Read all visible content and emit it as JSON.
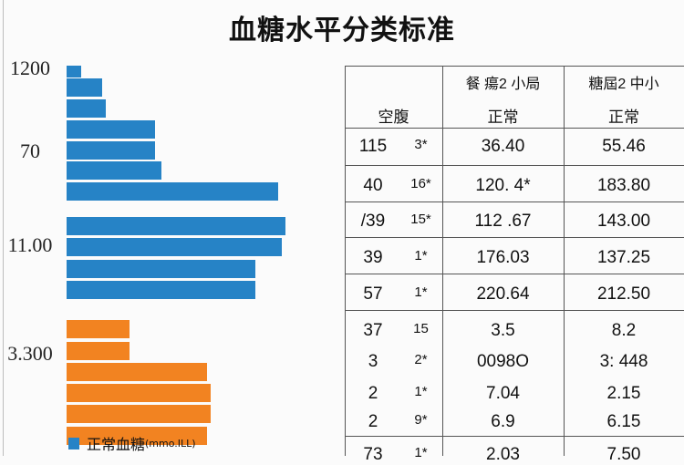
{
  "title": "血糖水平分类标准",
  "chart_data": {
    "type": "bar",
    "orientation": "horizontal",
    "y_tick_labels": [
      "1200",
      "70",
      "11.00",
      "3.300"
    ],
    "series": [
      {
        "color": "#2683c6",
        "values": [
          0.08,
          0.2,
          0.22,
          0.49,
          0.49,
          0.53,
          1.18,
          1.22,
          1.2,
          1.05,
          1.05
        ]
      },
      {
        "color": "#f28321",
        "values": [
          0.35,
          0.35,
          0.78,
          0.8,
          0.8,
          0.78
        ]
      }
    ],
    "legend": [
      {
        "label": "正常血糖",
        "unit": "(mmo.ILL)",
        "color": "#2683c6"
      }
    ]
  },
  "table": {
    "headers": [
      {
        "top": "",
        "sub": "空腹"
      },
      {
        "top": "餐 瘍2 小局",
        "sub": "正常"
      },
      {
        "top": "糖屆2 中小",
        "sub": "正常"
      }
    ],
    "rows": [
      {
        "c1": "115",
        "c2": "3*",
        "c3": "36.40",
        "c4": "55.46"
      },
      {
        "c1": "40",
        "c2": "16*",
        "c3": "120. 4*",
        "c4": "183.80"
      },
      {
        "c1": "/39",
        "c2": "15*",
        "c3": "112 .67",
        "c4": "143.00"
      },
      {
        "c1": "39",
        "c2": "1*",
        "c3": "176.03",
        "c4": "137.25"
      },
      {
        "c1": "57",
        "c2": "1*",
        "c3": "220.64",
        "c4": "212.50"
      },
      {
        "c1": "37",
        "c2": "15",
        "c3": "3.5",
        "c4": "8.2"
      },
      {
        "c1": "3",
        "c2": "2*",
        "c3": "0098O",
        "c4": "3: 448"
      },
      {
        "c1": "2",
        "c2": "1*",
        "c3": "7.04",
        "c4": "2.15"
      },
      {
        "c1": "2",
        "c2": "9*",
        "c3": "6.9",
        "c4": "6.15"
      },
      {
        "c1": "73",
        "c2": "1*",
        "c3": "2.03",
        "c4": "7.50"
      }
    ]
  }
}
